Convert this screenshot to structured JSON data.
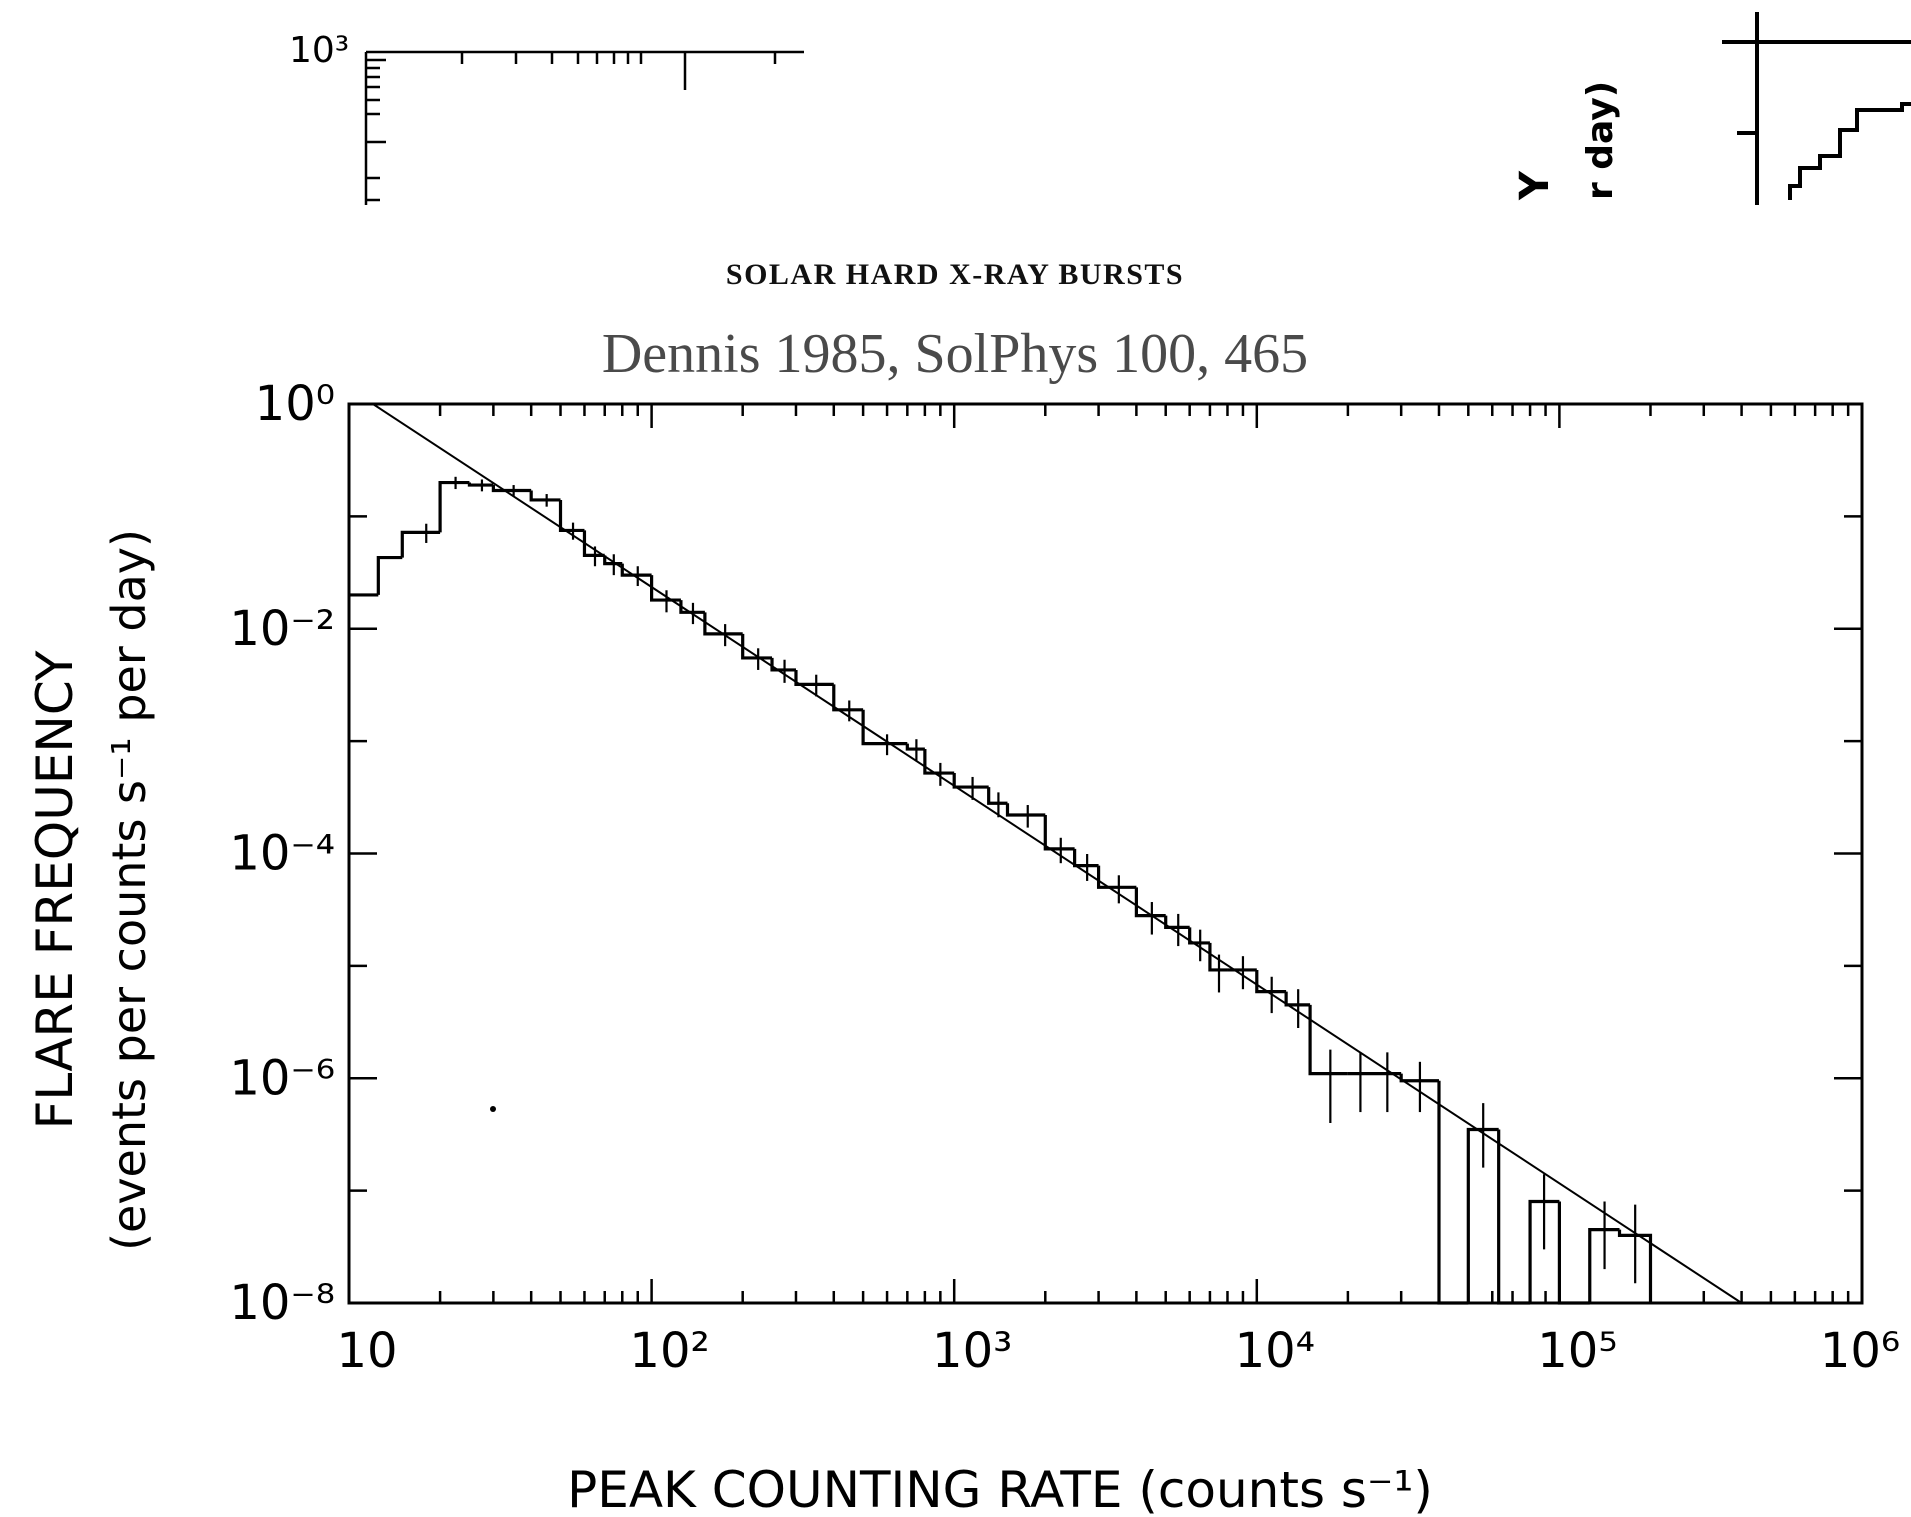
{
  "header": {
    "running_head": "SOLAR HARD X-RAY BURSTS",
    "citation": "Dennis 1985, SolPhys 100, 465"
  },
  "fragments": {
    "top_left_tick_label": "10³",
    "top_right_axis_text_1": "Y",
    "top_right_axis_text_2": "r day)"
  },
  "chart_data": {
    "type": "line",
    "title": "",
    "xlabel": "PEAK COUNTING RATE (counts s⁻¹)",
    "ylabel_line1": "FLARE FREQUENCY",
    "ylabel_line2": "(events per counts s⁻¹ per day)",
    "x_scale": "log",
    "y_scale": "log",
    "xlim": [
      10,
      1000000
    ],
    "ylim": [
      1e-08,
      1
    ],
    "grid": false,
    "legend": "none",
    "x_tick_labels": [
      {
        "value": 10,
        "label": "10"
      },
      {
        "value": 100,
        "label": "10²"
      },
      {
        "value": 1000,
        "label": "10³"
      },
      {
        "value": 10000,
        "label": "10⁴"
      },
      {
        "value": 100000,
        "label": "10⁵"
      },
      {
        "value": 1000000,
        "label": "10⁶"
      }
    ],
    "y_tick_labels": [
      {
        "value": 1,
        "label": "10⁰"
      },
      {
        "value": 0.01,
        "label": "10⁻²"
      },
      {
        "value": 0.0001,
        "label": "10⁻⁴"
      },
      {
        "value": 1e-06,
        "label": "10⁻⁶"
      },
      {
        "value": 1e-08,
        "label": "10⁻⁸"
      }
    ],
    "series": [
      {
        "style": "histogram",
        "bins": [
          {
            "x0": 10,
            "x1": 12.5,
            "y": 0.02
          },
          {
            "x0": 12.5,
            "x1": 15,
            "y": 0.043
          },
          {
            "x0": 15,
            "x1": 20,
            "y": 0.072
          },
          {
            "x0": 20,
            "x1": 25,
            "y": 0.2
          },
          {
            "x0": 25,
            "x1": 30,
            "y": 0.19
          },
          {
            "x0": 30,
            "x1": 40,
            "y": 0.17
          },
          {
            "x0": 40,
            "x1": 50,
            "y": 0.14
          },
          {
            "x0": 50,
            "x1": 60,
            "y": 0.075
          },
          {
            "x0": 60,
            "x1": 70,
            "y": 0.045
          },
          {
            "x0": 70,
            "x1": 80,
            "y": 0.038
          },
          {
            "x0": 80,
            "x1": 100,
            "y": 0.03
          },
          {
            "x0": 100,
            "x1": 125,
            "y": 0.018
          },
          {
            "x0": 125,
            "x1": 150,
            "y": 0.014
          },
          {
            "x0": 150,
            "x1": 200,
            "y": 0.009
          },
          {
            "x0": 200,
            "x1": 250,
            "y": 0.0055
          },
          {
            "x0": 250,
            "x1": 300,
            "y": 0.0043
          },
          {
            "x0": 300,
            "x1": 400,
            "y": 0.0032
          },
          {
            "x0": 400,
            "x1": 500,
            "y": 0.0019
          },
          {
            "x0": 500,
            "x1": 700,
            "y": 0.00095
          },
          {
            "x0": 700,
            "x1": 800,
            "y": 0.00085
          },
          {
            "x0": 800,
            "x1": 1000,
            "y": 0.00052
          },
          {
            "x0": 1000,
            "x1": 1300,
            "y": 0.00039
          },
          {
            "x0": 1300,
            "x1": 1500,
            "y": 0.00028
          },
          {
            "x0": 1500,
            "x1": 2000,
            "y": 0.00022
          },
          {
            "x0": 2000,
            "x1": 2500,
            "y": 0.00011
          },
          {
            "x0": 2500,
            "x1": 3000,
            "y": 7.8e-05
          },
          {
            "x0": 3000,
            "x1": 4000,
            "y": 5e-05
          },
          {
            "x0": 4000,
            "x1": 5000,
            "y": 2.8e-05
          },
          {
            "x0": 5000,
            "x1": 6000,
            "y": 2.2e-05
          },
          {
            "x0": 6000,
            "x1": 7000,
            "y": 1.6e-05
          },
          {
            "x0": 7000,
            "x1": 8000,
            "y": 9.2e-06
          },
          {
            "x0": 8000,
            "x1": 10000,
            "y": 9.2e-06
          },
          {
            "x0": 10000,
            "x1": 12500,
            "y": 5.9e-06
          },
          {
            "x0": 12500,
            "x1": 15000,
            "y": 4.5e-06
          },
          {
            "x0": 15000,
            "x1": 20000,
            "y": 1.1e-06
          },
          {
            "x0": 20000,
            "x1": 30000,
            "y": 1.1e-06
          },
          {
            "x0": 30000,
            "x1": 40000,
            "y": 9.5e-07
          },
          {
            "x0": 40000,
            "x1": 50000,
            "y": 1e-08
          },
          {
            "x0": 50000,
            "x1": 63000,
            "y": 3.5e-07
          },
          {
            "x0": 63000,
            "x1": 80000,
            "y": 1e-08
          },
          {
            "x0": 80000,
            "x1": 100000,
            "y": 8e-08
          },
          {
            "x0": 100000,
            "x1": 126000,
            "y": 1e-08
          },
          {
            "x0": 126000,
            "x1": 158000,
            "y": 4.5e-08
          },
          {
            "x0": 158000,
            "x1": 200000,
            "y": 4e-08
          }
        ],
        "error_bars": [
          {
            "x": 18,
            "y": 0.072,
            "lo": 0.058,
            "hi": 0.086
          },
          {
            "x": 22.5,
            "y": 0.2,
            "lo": 0.175,
            "hi": 0.225
          },
          {
            "x": 27.5,
            "y": 0.19,
            "lo": 0.167,
            "hi": 0.213
          },
          {
            "x": 35,
            "y": 0.17,
            "lo": 0.15,
            "hi": 0.19
          },
          {
            "x": 45,
            "y": 0.14,
            "lo": 0.122,
            "hi": 0.158
          },
          {
            "x": 55,
            "y": 0.075,
            "lo": 0.062,
            "hi": 0.088
          },
          {
            "x": 65,
            "y": 0.045,
            "lo": 0.036,
            "hi": 0.054
          },
          {
            "x": 75,
            "y": 0.038,
            "lo": 0.03,
            "hi": 0.046
          },
          {
            "x": 90,
            "y": 0.03,
            "lo": 0.024,
            "hi": 0.036
          },
          {
            "x": 112,
            "y": 0.018,
            "lo": 0.014,
            "hi": 0.022
          },
          {
            "x": 137,
            "y": 0.014,
            "lo": 0.011,
            "hi": 0.017
          },
          {
            "x": 175,
            "y": 0.009,
            "lo": 0.007,
            "hi": 0.011
          },
          {
            "x": 225,
            "y": 0.0055,
            "lo": 0.0043,
            "hi": 0.0067
          },
          {
            "x": 275,
            "y": 0.0043,
            "lo": 0.0033,
            "hi": 0.0053
          },
          {
            "x": 350,
            "y": 0.0032,
            "lo": 0.0025,
            "hi": 0.0039
          },
          {
            "x": 450,
            "y": 0.0019,
            "lo": 0.0015,
            "hi": 0.0023
          },
          {
            "x": 600,
            "y": 0.00095,
            "lo": 0.00075,
            "hi": 0.00115
          },
          {
            "x": 750,
            "y": 0.00085,
            "lo": 0.00066,
            "hi": 0.00104
          },
          {
            "x": 900,
            "y": 0.00052,
            "lo": 0.0004,
            "hi": 0.00064
          },
          {
            "x": 1150,
            "y": 0.00039,
            "lo": 0.0003,
            "hi": 0.00048
          },
          {
            "x": 1400,
            "y": 0.00028,
            "lo": 0.00021,
            "hi": 0.00035
          },
          {
            "x": 1750,
            "y": 0.00022,
            "lo": 0.00017,
            "hi": 0.00027
          },
          {
            "x": 2250,
            "y": 0.00011,
            "lo": 8.2e-05,
            "hi": 0.000138
          },
          {
            "x": 2750,
            "y": 7.8e-05,
            "lo": 5.7e-05,
            "hi": 9.9e-05
          },
          {
            "x": 3500,
            "y": 5e-05,
            "lo": 3.6e-05,
            "hi": 6.4e-05
          },
          {
            "x": 4500,
            "y": 2.8e-05,
            "lo": 1.9e-05,
            "hi": 3.7e-05
          },
          {
            "x": 5500,
            "y": 2.2e-05,
            "lo": 1.5e-05,
            "hi": 2.9e-05
          },
          {
            "x": 6500,
            "y": 1.6e-05,
            "lo": 1.1e-05,
            "hi": 2.1e-05
          },
          {
            "x": 7500,
            "y": 9.2e-06,
            "lo": 5.8e-06,
            "hi": 1.26e-05
          },
          {
            "x": 9000,
            "y": 9.2e-06,
            "lo": 6.2e-06,
            "hi": 1.22e-05
          },
          {
            "x": 11200,
            "y": 5.9e-06,
            "lo": 3.8e-06,
            "hi": 8e-06
          },
          {
            "x": 13700,
            "y": 4.5e-06,
            "lo": 2.8e-06,
            "hi": 6.2e-06
          },
          {
            "x": 17500,
            "y": 1.1e-06,
            "lo": 4e-07,
            "hi": 1.8e-06
          },
          {
            "x": 22000,
            "y": 1.1e-06,
            "lo": 5e-07,
            "hi": 1.7e-06
          },
          {
            "x": 27000,
            "y": 1.1e-06,
            "lo": 5e-07,
            "hi": 1.7e-06
          },
          {
            "x": 34600,
            "y": 9.5e-07,
            "lo": 5e-07,
            "hi": 1.4e-06
          },
          {
            "x": 56000,
            "y": 3.5e-07,
            "lo": 1.6e-07,
            "hi": 6e-07
          },
          {
            "x": 89000,
            "y": 8e-08,
            "lo": 3e-08,
            "hi": 1.4e-07
          },
          {
            "x": 141000,
            "y": 4.5e-08,
            "lo": 2e-08,
            "hi": 8e-08
          },
          {
            "x": 178000,
            "y": 4e-08,
            "lo": 1.5e-08,
            "hi": 7.5e-08
          }
        ]
      },
      {
        "style": "power-law fit line",
        "x": [
          12,
          400000
        ],
        "y": [
          1,
          1e-08
        ]
      }
    ]
  }
}
